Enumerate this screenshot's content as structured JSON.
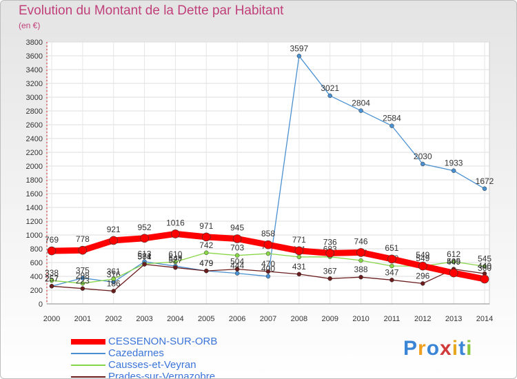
{
  "header": {
    "title": "Evolution du Montant de la Dette par Habitant",
    "subtitle": "(en €)"
  },
  "logo": {
    "text": "Proxiti",
    "colors": [
      "#3a85d6",
      "#f0a020",
      "#3a85d6",
      "#d03a3a",
      "#e6a81e",
      "#3a85d6",
      "#8cc63f"
    ]
  },
  "chart_data": {
    "type": "line",
    "title": "Evolution du Montant de la Dette par Habitant",
    "subtitle": "(en €)",
    "xlabel": "",
    "ylabel": "",
    "x": [
      2000,
      2001,
      2002,
      2003,
      2004,
      2005,
      2006,
      2007,
      2008,
      2009,
      2010,
      2011,
      2012,
      2013,
      2014
    ],
    "ylim": [
      0,
      3800
    ],
    "yticks": [
      0,
      200,
      400,
      600,
      800,
      1000,
      1200,
      1400,
      1600,
      1800,
      2000,
      2200,
      2400,
      2600,
      2800,
      3000,
      3200,
      3400,
      3600,
      3800
    ],
    "grid": true,
    "legend_position": "bottom-left",
    "series": [
      {
        "name": "CESSENON-SUR-ORB",
        "color": "#ff0000",
        "emphasis": true,
        "values": [
          769,
          778,
          921,
          952,
          1016,
          971,
          945,
          858,
          771,
          736,
          746,
          651,
          549,
          449,
          360
        ]
      },
      {
        "name": "Cazedarnes",
        "color": "#4a90d0",
        "values": [
          257,
          375,
          316,
          613,
          548,
          479,
          444,
          400,
          3597,
          3021,
          2804,
          2584,
          2030,
          1933,
          1672
        ]
      },
      {
        "name": "Causses-et-Veyran",
        "color": "#88d648",
        "values": [
          338,
          298,
          361,
          581,
          610,
          742,
          703,
          730,
          681,
          683,
          630,
          550,
          549,
          612,
          545
        ]
      },
      {
        "name": "Prades-sur-Vernazobre",
        "color": "#6b1c1c",
        "values": [
          257,
          223,
          186,
          574,
          527,
          479,
          504,
          470,
          431,
          367,
          388,
          347,
          296,
          505,
          440
        ]
      }
    ]
  }
}
